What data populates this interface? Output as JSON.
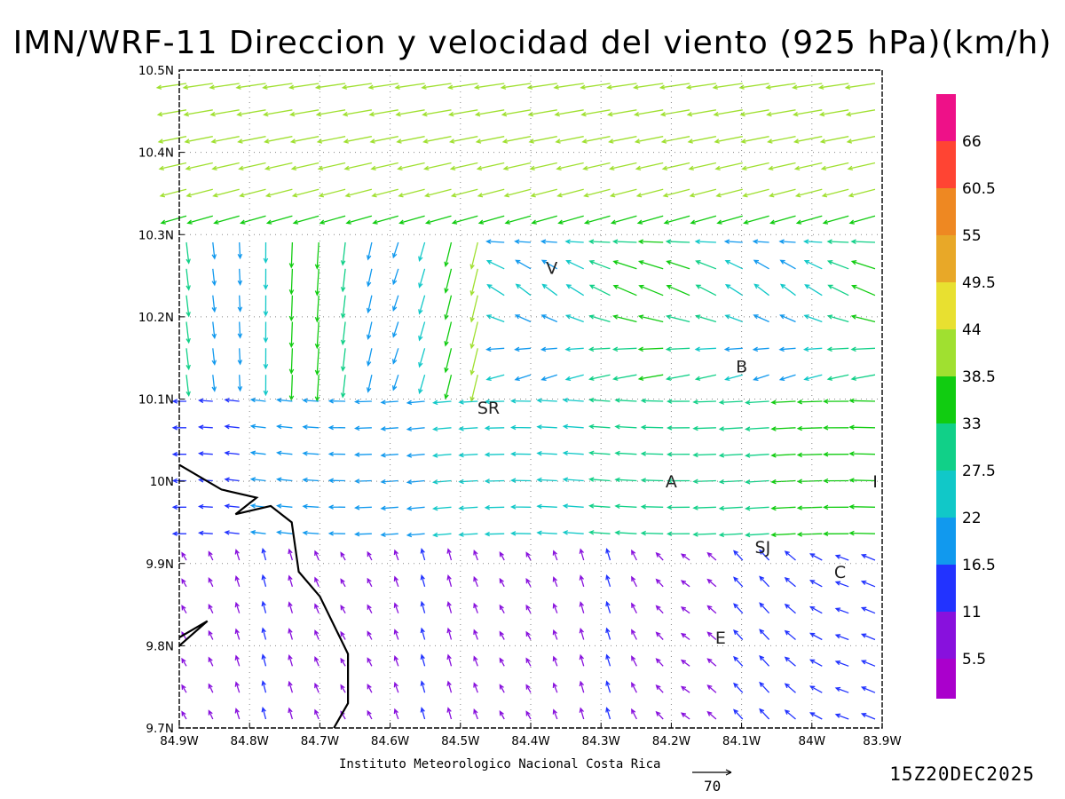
{
  "title": "IMN/WRF-11 Direccion y velocidad del viento (925 hPa)(km/h)",
  "footer": {
    "credit": "Instituto Meteorologico Nacional Costa Rica",
    "datestamp": "15Z20DEC2025",
    "reference_vector_label": "70"
  },
  "map": {
    "lon_ticks": [
      "84.9W",
      "84.8W",
      "84.7W",
      "84.6W",
      "84.5W",
      "84.4W",
      "84.3W",
      "84.2W",
      "84.1W",
      "84W",
      "83.9W"
    ],
    "lat_ticks": [
      "10.5N",
      "10.4N",
      "10.3N",
      "10.2N",
      "10.1N",
      "10N",
      "9.9N",
      "9.8N",
      "9.7N"
    ],
    "lon_range": [
      -84.9,
      -83.9
    ],
    "lat_range": [
      9.7,
      10.5
    ],
    "grid": "dotted",
    "stations": [
      {
        "label": "V",
        "lon": -84.37,
        "lat": 10.26
      },
      {
        "label": "B",
        "lon": -84.1,
        "lat": 10.14
      },
      {
        "label": "SR",
        "lon": -84.46,
        "lat": 10.09
      },
      {
        "label": "A",
        "lon": -84.2,
        "lat": 10.0
      },
      {
        "label": "I",
        "lon": -83.91,
        "lat": 10.0
      },
      {
        "label": "SJ",
        "lon": -84.07,
        "lat": 9.92
      },
      {
        "label": "C",
        "lon": -83.96,
        "lat": 9.89
      },
      {
        "label": "E",
        "lon": -84.13,
        "lat": 9.81
      }
    ],
    "coastline": [
      [
        -84.9,
        10.02
      ],
      [
        -84.84,
        9.99
      ],
      [
        -84.79,
        9.98
      ],
      [
        -84.82,
        9.96
      ],
      [
        -84.77,
        9.97
      ],
      [
        -84.74,
        9.95
      ],
      [
        -84.73,
        9.89
      ],
      [
        -84.7,
        9.86
      ],
      [
        -84.66,
        9.79
      ],
      [
        -84.66,
        9.73
      ],
      [
        -84.68,
        9.7
      ]
    ],
    "coastline_b": [
      [
        -84.9,
        9.8
      ],
      [
        -84.86,
        9.83
      ],
      [
        -84.9,
        9.81
      ]
    ]
  },
  "colorbar": {
    "labels": [
      "66",
      "60.5",
      "55",
      "49.5",
      "44",
      "38.5",
      "33",
      "27.5",
      "22",
      "16.5",
      "11",
      "5.5"
    ],
    "colors": [
      "#ee1188",
      "#ff4433",
      "#ee8822",
      "#e8a828",
      "#e8e030",
      "#a0e030",
      "#11cc11",
      "#11d088",
      "#11c8c8",
      "#1199ee",
      "#2233ff",
      "#8811dd",
      "#aa00cc"
    ]
  }
}
